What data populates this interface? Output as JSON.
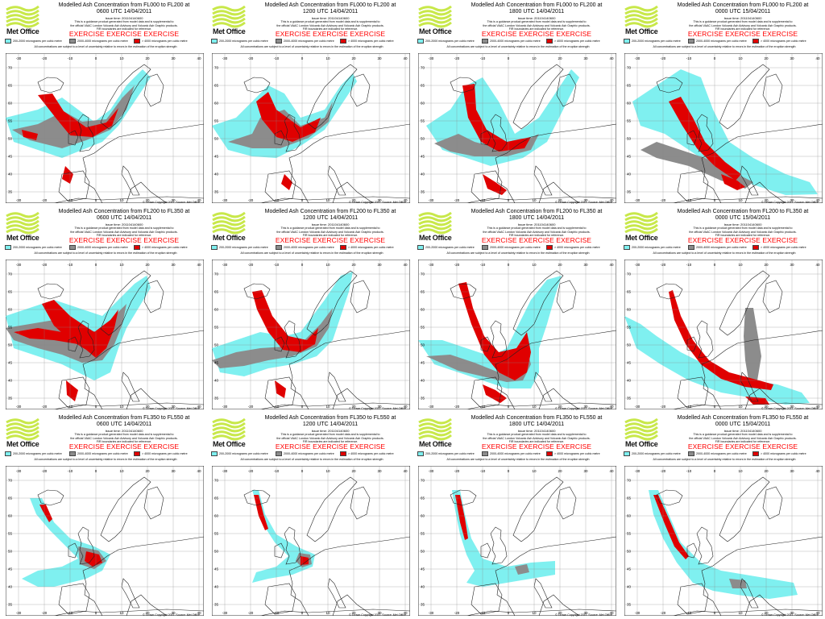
{
  "brand": "Met Office",
  "colors": {
    "cyan": "#7ff0f0",
    "grey": "#8c8c8c",
    "red": "#e00000",
    "logo": "#c8e84a",
    "exercise": "#ff0000"
  },
  "legend": [
    {
      "label": "200-2000 micrograms per cubic metre",
      "color": "#7ff0f0"
    },
    {
      "label": "2000-4000 micrograms per cubic metre",
      "color": "#8c8c8c"
    },
    {
      "label": "> 4000 micrograms per cubic metre",
      "color": "#e00000"
    }
  ],
  "issue_time": "Issue time: 201104140600",
  "disclaimer_lines": [
    "This is a guidance product generated from model data and is supplemental to",
    "the official VAAC London Volcanic Ash Advisory and Volcanic Ash Graphic products.",
    "FIR boundaries are indicated for reference."
  ],
  "exercise": "EXERCISE EXERCISE EXERCISE",
  "uncertainty": "All concentrations are subject to a level of uncertainty relative to errors in the estimation of the eruption strength",
  "copyright": "© Crown Copyright 2011. Source: Met Office",
  "lon_labels": [
    "-30",
    "-20",
    "-10",
    "0",
    "10",
    "20",
    "30",
    "40"
  ],
  "lat_labels": [
    "70",
    "65",
    "60",
    "55",
    "50",
    "45",
    "40",
    "35"
  ],
  "panels": [
    {
      "title": "Modelled Ash Concentration from FL000 to FL200 at",
      "time": "0600 UTC 14/04/2011"
    },
    {
      "title": "Modelled Ash Concentration from FL000 to FL200 at",
      "time": "1200 UTC 14/04/2011"
    },
    {
      "title": "Modelled Ash Concentration from FL000 to FL200 at",
      "time": "1800 UTC 14/04/2011"
    },
    {
      "title": "Modelled Ash Concentration from FL000 to FL200 at",
      "time": "0000 UTC 15/04/2011"
    },
    {
      "title": "Modelled Ash Concentration from FL200 to FL350 at",
      "time": "0600 UTC 14/04/2011"
    },
    {
      "title": "Modelled Ash Concentration from FL200 to FL350 at",
      "time": "1200 UTC 14/04/2011"
    },
    {
      "title": "Modelled Ash Concentration from FL200 to FL350 at",
      "time": "1800 UTC 14/04/2011"
    },
    {
      "title": "Modelled Ash Concentration from FL200 to FL350 at",
      "time": "0000 UTC 15/04/2011"
    },
    {
      "title": "Modelled Ash Concentration from FL350 to FL550 at",
      "time": "0600 UTC 14/04/2011"
    },
    {
      "title": "Modelled Ash Concentration from FL350 to FL550 at",
      "time": "1200 UTC 14/04/2011"
    },
    {
      "title": "Modelled Ash Concentration from FL350 to FL550 at",
      "time": "1800 UTC 14/04/2011"
    },
    {
      "title": "Modelled Ash Concentration from FL350 to FL550 at",
      "time": "0000 UTC 15/04/2011"
    }
  ]
}
